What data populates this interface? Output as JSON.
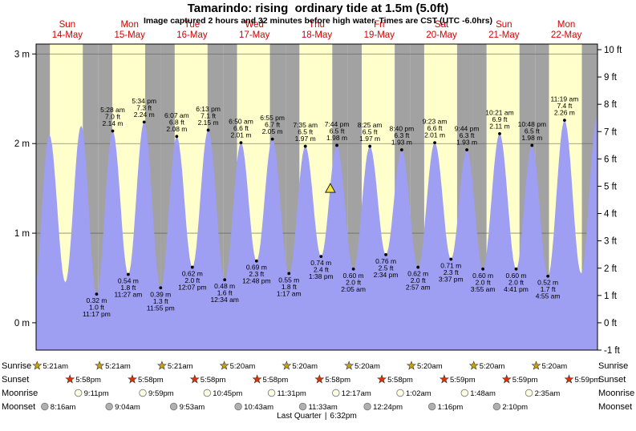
{
  "title": "Tamarindo: rising  ordinary tide at 1.5m (5.0ft)",
  "subtitle": "Image captured 2 hours and 32 minutes before high water. Times are CST (UTC -6.0hrs)",
  "row_headers": {
    "sunrise": "Sunrise",
    "sunset": "Sunset",
    "moonrise": "Moonrise",
    "moonset": "Moonset"
  },
  "footer": {
    "phase": "Last Quarter",
    "sep": "|",
    "time": "6:32pm"
  },
  "colors": {
    "day_band": "#ffffcb",
    "night_band": "#a2a2a2",
    "tide_fill": "#9e9ef2",
    "date_label": "#d40000",
    "sunrise_star": "#c7a400",
    "sunset_star": "#dd3300",
    "moonrise_icon": "#ffffe4",
    "moonset_icon": "#b0b0b0",
    "marker_fill": "#f5e642",
    "grid_line": "#555555"
  },
  "chart_data": {
    "type": "area",
    "title": "Tamarindo: rising  ordinary tide at 1.5m (5.0ft)",
    "x_range_hours": [
      0,
      216
    ],
    "ylabel_left": "m",
    "ylabel_right": "ft",
    "y_left_ticks": [
      {
        "m": 0,
        "label": "0 m"
      },
      {
        "m": 1,
        "label": "1 m"
      },
      {
        "m": 2,
        "label": "2 m"
      },
      {
        "m": 3,
        "label": "3 m"
      }
    ],
    "y_right_ticks": [
      {
        "ft": -1,
        "label": "-1 ft"
      },
      {
        "ft": 0,
        "label": "0 ft"
      },
      {
        "ft": 1,
        "label": "1 ft"
      },
      {
        "ft": 2,
        "label": "2 ft"
      },
      {
        "ft": 3,
        "label": "3 ft"
      },
      {
        "ft": 4,
        "label": "4 ft"
      },
      {
        "ft": 5,
        "label": "5 ft"
      },
      {
        "ft": 6,
        "label": "6 ft"
      },
      {
        "ft": 7,
        "label": "7 ft"
      },
      {
        "ft": 8,
        "label": "8 ft"
      },
      {
        "ft": 9,
        "label": "9 ft"
      },
      {
        "ft": 10,
        "label": "10 ft"
      }
    ],
    "days": [
      {
        "weekday": "Sun",
        "date": "14-May",
        "sunrise": "5:21am",
        "sunrise_h": 5.35,
        "sunset": "5:58pm",
        "sunset_h": 17.9667,
        "moonrise": "9:11pm",
        "moonrise_h": 21.1833,
        "moonset": "8:16am",
        "moonset_h": 8.2667
      },
      {
        "weekday": "Mon",
        "date": "15-May",
        "sunrise": "5:21am",
        "sunrise_h": 5.35,
        "sunset": "5:58pm",
        "sunset_h": 17.9667,
        "moonrise": "9:59pm",
        "moonrise_h": 21.9833,
        "moonset": "9:04am",
        "moonset_h": 9.0667
      },
      {
        "weekday": "Tue",
        "date": "16-May",
        "sunrise": "5:21am",
        "sunrise_h": 5.35,
        "sunset": "5:58pm",
        "sunset_h": 17.9667,
        "moonrise": "10:45pm",
        "moonrise_h": 22.75,
        "moonset": "9:53am",
        "moonset_h": 9.8833
      },
      {
        "weekday": "Wed",
        "date": "17-May",
        "sunrise": "5:20am",
        "sunrise_h": 5.3333,
        "sunset": "5:58pm",
        "sunset_h": 17.9667,
        "moonrise": "11:31pm",
        "moonrise_h": 23.5167,
        "moonset": "10:43am",
        "moonset_h": 10.7167
      },
      {
        "weekday": "Thu",
        "date": "18-May",
        "sunrise": "5:20am",
        "sunrise_h": 5.3333,
        "sunset": "5:58pm",
        "sunset_h": 17.9667,
        "moonrise": null,
        "moonrise_h": null,
        "moonset": "11:33am",
        "moonset_h": 11.55
      },
      {
        "weekday": "Fri",
        "date": "19-May",
        "sunrise": "5:20am",
        "sunrise_h": 5.3333,
        "sunset": "5:58pm",
        "sunset_h": 17.9667,
        "moonrise": "12:17am",
        "moonrise_h": 0.2833,
        "moonset": "12:24pm",
        "moonset_h": 12.4
      },
      {
        "weekday": "Sat",
        "date": "20-May",
        "sunrise": "5:20am",
        "sunrise_h": 5.3333,
        "sunset": "5:59pm",
        "sunset_h": 17.9833,
        "moonrise": "1:02am",
        "moonrise_h": 1.0333,
        "moonset": "1:16pm",
        "moonset_h": 13.2667
      },
      {
        "weekday": "Sun",
        "date": "21-May",
        "sunrise": "5:20am",
        "sunrise_h": 5.3333,
        "sunset": "5:59pm",
        "sunset_h": 17.9833,
        "moonrise": "1:48am",
        "moonrise_h": 1.8,
        "moonset": "2:10pm",
        "moonset_h": 14.1667
      },
      {
        "weekday": "Mon",
        "date": "22-May",
        "sunrise": "5:20am",
        "sunrise_h": 5.3333,
        "sunset": "5:59pm",
        "sunset_h": 17.9833,
        "moonrise": "2:35am",
        "moonrise_h": 2.5833,
        "moonset": null,
        "moonset_h": null
      }
    ],
    "tide_events": [
      {
        "t": -0.9,
        "kind": "low",
        "m": 0.3,
        "labeled": false
      },
      {
        "t": 5.08,
        "kind": "high",
        "m": 2.1,
        "labeled": false
      },
      {
        "t": 11.25,
        "kind": "low",
        "m": 0.45,
        "labeled": false
      },
      {
        "t": 17.33,
        "kind": "high",
        "m": 2.2,
        "labeled": false
      },
      {
        "t": 23.2833,
        "kind": "low",
        "m": 0.32,
        "label_m": "0.32 m",
        "label_ft": "1.0 ft",
        "label_time": "11:17 pm",
        "labeled": true
      },
      {
        "t": 29.4667,
        "kind": "high",
        "m": 2.14,
        "label_m": "2.14 m",
        "label_ft": "7.0 ft",
        "label_time": "5:28 am",
        "labeled": true
      },
      {
        "t": 35.45,
        "kind": "low",
        "m": 0.54,
        "label_m": "0.54 m",
        "label_ft": "1.8 ft",
        "label_time": "11:27 am",
        "labeled": true
      },
      {
        "t": 41.5667,
        "kind": "high",
        "m": 2.24,
        "label_m": "2.24 m",
        "label_ft": "7.3 ft",
        "label_time": "5:34 pm",
        "labeled": true
      },
      {
        "t": 47.9167,
        "kind": "low",
        "m": 0.39,
        "label_m": "0.39 m",
        "label_ft": "1.3 ft",
        "label_time": "11:55 pm",
        "labeled": true
      },
      {
        "t": 54.1167,
        "kind": "high",
        "m": 2.08,
        "label_m": "2.08 m",
        "label_ft": "6.8 ft",
        "label_time": "6:07 am",
        "labeled": true
      },
      {
        "t": 60.1167,
        "kind": "low",
        "m": 0.62,
        "label_m": "0.62 m",
        "label_ft": "2.0 ft",
        "label_time": "12:07 pm",
        "labeled": true
      },
      {
        "t": 66.2167,
        "kind": "high",
        "m": 2.15,
        "label_m": "2.15 m",
        "label_ft": "7.1 ft",
        "label_time": "6:13 pm",
        "labeled": true
      },
      {
        "t": 72.5667,
        "kind": "low",
        "m": 0.48,
        "label_m": "0.48 m",
        "label_ft": "1.6 ft",
        "label_time": "12:34 am",
        "labeled": true
      },
      {
        "t": 78.8333,
        "kind": "high",
        "m": 2.01,
        "label_m": "2.01 m",
        "label_ft": "6.6 ft",
        "label_time": "6:50 am",
        "labeled": true
      },
      {
        "t": 84.8,
        "kind": "low",
        "m": 0.69,
        "label_m": "0.69 m",
        "label_ft": "2.3 ft",
        "label_time": "12:48 pm",
        "labeled": true
      },
      {
        "t": 90.9167,
        "kind": "high",
        "m": 2.05,
        "label_m": "2.05 m",
        "label_ft": "6.7 ft",
        "label_time": "6:55 pm",
        "labeled": true
      },
      {
        "t": 97.2833,
        "kind": "low",
        "m": 0.55,
        "label_m": "0.55 m",
        "label_ft": "1.8 ft",
        "label_time": "1:17 am",
        "labeled": true
      },
      {
        "t": 103.5833,
        "kind": "high",
        "m": 1.97,
        "label_m": "1.97 m",
        "label_ft": "6.5 ft",
        "label_time": "7:35 am",
        "labeled": true
      },
      {
        "t": 109.6333,
        "kind": "low",
        "m": 0.74,
        "label_m": "0.74 m",
        "label_ft": "2.4 ft",
        "label_time": "1:38 pm",
        "labeled": true
      },
      {
        "t": 115.7333,
        "kind": "high",
        "m": 1.98,
        "label_m": "1.98 m",
        "label_ft": "6.5 ft",
        "label_time": "7:44 pm",
        "labeled": true
      },
      {
        "t": 122.0833,
        "kind": "low",
        "m": 0.6,
        "label_m": "0.60 m",
        "label_ft": "2.0 ft",
        "label_time": "2:05 am",
        "labeled": true
      },
      {
        "t": 128.4167,
        "kind": "high",
        "m": 1.97,
        "label_m": "1.97 m",
        "label_ft": "6.5 ft",
        "label_time": "8:25 am",
        "labeled": true
      },
      {
        "t": 134.5667,
        "kind": "low",
        "m": 0.76,
        "label_m": "0.76 m",
        "label_ft": "2.5 ft",
        "label_time": "2:34 pm",
        "labeled": true
      },
      {
        "t": 140.6667,
        "kind": "high",
        "m": 1.93,
        "label_m": "1.93 m",
        "label_ft": "6.3 ft",
        "label_time": "8:40 pm",
        "labeled": true
      },
      {
        "t": 146.95,
        "kind": "low",
        "m": 0.62,
        "label_m": "0.62 m",
        "label_ft": "2.0 ft",
        "label_time": "2:57 am",
        "labeled": true
      },
      {
        "t": 153.3833,
        "kind": "high",
        "m": 2.01,
        "label_m": "2.01 m",
        "label_ft": "6.6 ft",
        "label_time": "9:23 am",
        "labeled": true
      },
      {
        "t": 159.6167,
        "kind": "low",
        "m": 0.71,
        "label_m": "0.71 m",
        "label_ft": "2.3 ft",
        "label_time": "3:37 pm",
        "labeled": true
      },
      {
        "t": 165.7333,
        "kind": "high",
        "m": 1.93,
        "label_m": "1.93 m",
        "label_ft": "6.3 ft",
        "label_time": "9:44 pm",
        "labeled": true
      },
      {
        "t": 171.9167,
        "kind": "low",
        "m": 0.6,
        "label_m": "0.60 m",
        "label_ft": "2.0 ft",
        "label_time": "3:55 am",
        "labeled": true
      },
      {
        "t": 178.35,
        "kind": "high",
        "m": 2.11,
        "label_m": "2.11 m",
        "label_ft": "6.9 ft",
        "label_time": "10:21 am",
        "labeled": true
      },
      {
        "t": 184.6833,
        "kind": "low",
        "m": 0.6,
        "label_m": "0.60 m",
        "label_ft": "2.0 ft",
        "label_time": "4:41 pm",
        "labeled": true
      },
      {
        "t": 190.8,
        "kind": "high",
        "m": 1.98,
        "label_m": "1.98 m",
        "label_ft": "6.5 ft",
        "label_time": "10:48 pm",
        "labeled": true
      },
      {
        "t": 196.9167,
        "kind": "low",
        "m": 0.52,
        "label_m": "0.52 m",
        "label_ft": "1.7 ft",
        "label_time": "4:55 am",
        "labeled": true
      },
      {
        "t": 203.3167,
        "kind": "high",
        "m": 2.26,
        "label_m": "2.26 m",
        "label_ft": "7.4 ft",
        "label_time": "11:19 am",
        "labeled": true
      },
      {
        "t": 209.7,
        "kind": "low",
        "m": 0.55,
        "labeled": false
      },
      {
        "t": 215.9,
        "kind": "high",
        "m": 2.3,
        "labeled": false
      }
    ],
    "current_marker": {
      "t": 113.2,
      "m": 1.5
    }
  }
}
